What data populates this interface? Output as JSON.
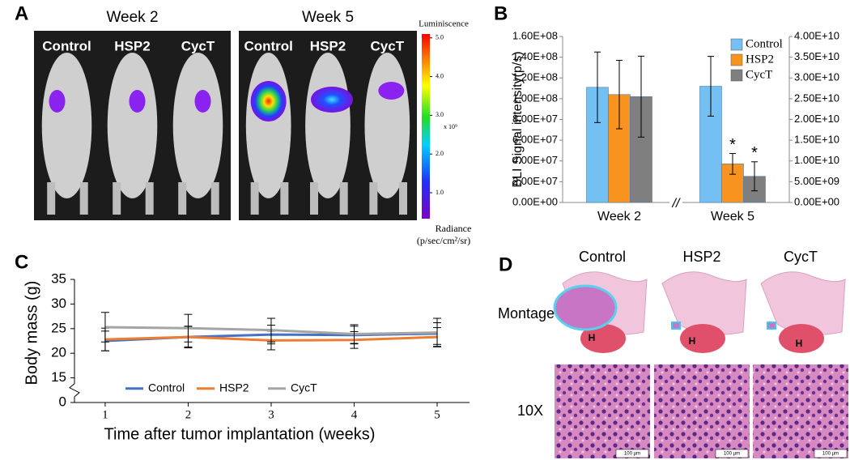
{
  "panel_a": {
    "label": "A",
    "groups": [
      {
        "title": "Week 2",
        "mice": [
          "Control",
          "HSP2",
          "CycT"
        ]
      },
      {
        "title": "Week 5",
        "mice": [
          "Control",
          "HSP2",
          "CycT"
        ]
      }
    ],
    "colorbar": {
      "title": "Luminiscence",
      "multiplier": "x 10⁹",
      "lim": [
        0.33,
        5.1
      ],
      "ticks": [
        {
          "value": 5,
          "label": "5.0"
        },
        {
          "value": 4,
          "label": "4.0"
        },
        {
          "value": 3,
          "label": "3.0"
        },
        {
          "value": 2,
          "label": "2.0"
        },
        {
          "value": 1,
          "label": "1.0"
        }
      ],
      "quantity": "Radiance",
      "unit": "(p/sec/cm²/sr)"
    }
  },
  "chart_data": [
    {
      "type": "bar",
      "panel_label": "B",
      "y_label": "BLI Signal intensity(p/s)",
      "categories": [
        "Week 2",
        "Week 5"
      ],
      "axis_by_category": [
        "y",
        "y2"
      ],
      "axis_break_label": "//",
      "series": [
        {
          "name": "Control",
          "color": "#74c0f2",
          "values": [
            111000000,
            28000000000
          ],
          "errors": [
            34000000,
            7200000000
          ],
          "significance": [
            null,
            null
          ]
        },
        {
          "name": "HSP2",
          "color": "#f7931e",
          "values": [
            104000000,
            9300000000
          ],
          "errors": [
            33000000,
            2500000000
          ],
          "significance": [
            null,
            "*"
          ]
        },
        {
          "name": "CycT",
          "color": "#7f7f7f",
          "values": [
            102000000,
            6300000000
          ],
          "errors": [
            39000000,
            3500000000
          ],
          "significance": [
            null,
            "*"
          ]
        }
      ],
      "ylim": [
        0,
        160000000
      ],
      "yticks": [
        {
          "value": 0,
          "label": "0.00E+00"
        },
        {
          "value": 20000000,
          "label": "2.00E+07"
        },
        {
          "value": 40000000,
          "label": "4.00E+07"
        },
        {
          "value": 60000000,
          "label": "6.00E+07"
        },
        {
          "value": 80000000,
          "label": "8.00E+07"
        },
        {
          "value": 100000000,
          "label": "1.00E+08"
        },
        {
          "value": 120000000,
          "label": "1.20E+08"
        },
        {
          "value": 140000000,
          "label": "1.40E+08"
        },
        {
          "value": 160000000,
          "label": "1.60E+08"
        }
      ],
      "y2lim": [
        0,
        40000000000
      ],
      "y2ticks": [
        {
          "value": 0,
          "label": "0.00E+00"
        },
        {
          "value": 5000000000,
          "label": "5.00E+09"
        },
        {
          "value": 10000000000,
          "label": "1.00E+10"
        },
        {
          "value": 15000000000,
          "label": "1.50E+10"
        },
        {
          "value": 20000000000,
          "label": "2.00E+10"
        },
        {
          "value": 25000000000,
          "label": "2.50E+10"
        },
        {
          "value": 30000000000,
          "label": "3.00E+10"
        },
        {
          "value": 35000000000,
          "label": "3.50E+10"
        },
        {
          "value": 40000000000,
          "label": "4.00E+10"
        }
      ],
      "legend": "upper right"
    },
    {
      "type": "line",
      "panel_label": "C",
      "x_label": "Time after tumor implantation (weeks)",
      "y_label": "Body mass (g)",
      "x": [
        1,
        2,
        3,
        4,
        5
      ],
      "xlim": [
        0.63,
        5.39
      ],
      "xticks": [
        1,
        2,
        3,
        4,
        5
      ],
      "ylim": [
        0,
        35
      ],
      "axis_break": [
        0,
        15
      ],
      "yticks": [
        0,
        15,
        20,
        25,
        30,
        35
      ],
      "series": [
        {
          "name": "Control",
          "color": "#4472c4",
          "values": [
            22.5,
            23.3,
            23.8,
            23.7,
            24.0
          ],
          "errors": [
            2.0,
            2.0,
            1.9,
            1.8,
            2.2
          ]
        },
        {
          "name": "HSP2",
          "color": "#ed7d31",
          "values": [
            22.8,
            23.3,
            22.6,
            22.7,
            23.3
          ],
          "errors": [
            2.3,
            2.2,
            1.9,
            1.7,
            1.9
          ]
        },
        {
          "name": "CycT",
          "color": "#a5a5a5",
          "values": [
            25.3,
            25.1,
            24.7,
            23.9,
            24.2
          ],
          "errors": [
            3.0,
            2.8,
            2.4,
            1.9,
            2.9
          ]
        }
      ],
      "legend": "lower center"
    }
  ],
  "panel_d": {
    "label": "D",
    "columns": [
      "Control",
      "HSP2",
      "CycT"
    ],
    "rows": [
      "Montage",
      "10X"
    ],
    "heart_labels": [
      "H",
      "H",
      "H"
    ],
    "scale_bars": [
      "100 µm",
      "100 µm",
      "100 µm"
    ]
  }
}
